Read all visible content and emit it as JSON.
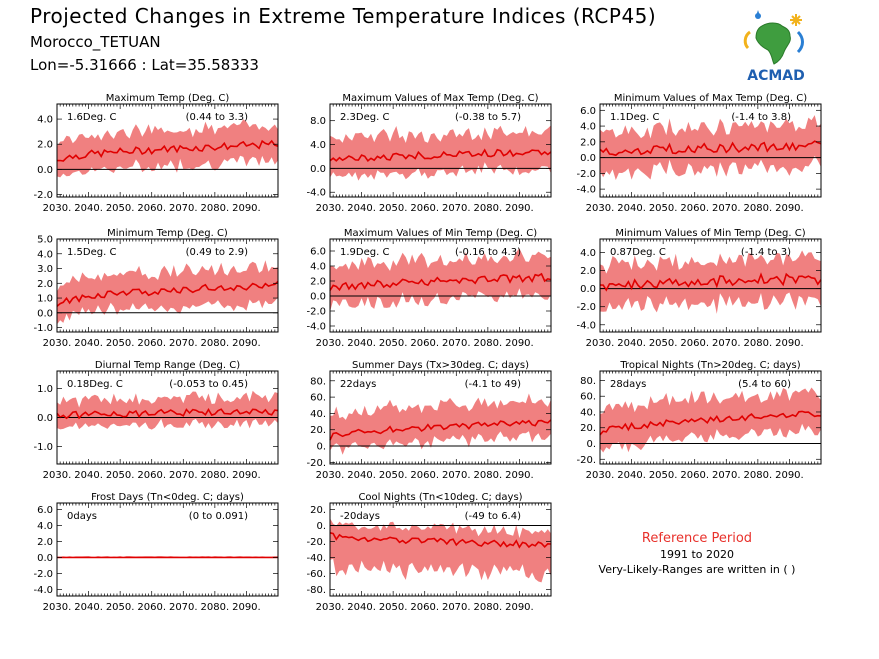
{
  "header": {
    "title": "Projected Changes in Extreme Temperature Indices (RCP45)",
    "station": "Morocco_TETUAN",
    "coords": "Lon=-5.31666 : Lat=35.58333"
  },
  "logo": {
    "text": "ACMAD",
    "icon": "africa-map-logo-icon"
  },
  "reference": {
    "title": "Reference Period",
    "years": "1991 to 2020",
    "note": "Very-Likely-Ranges are written in ( )"
  },
  "colors": {
    "band": "#f08080",
    "line": "#e00000",
    "zero": "#000000"
  },
  "chart_data": [
    {
      "type": "area",
      "title": "Maximum Temp (Deg. C)",
      "mean_label": "1.6Deg. C",
      "range_label": "(0.44 to 3.3)",
      "yticks": [
        -2,
        0,
        2,
        4
      ],
      "ytick_labels": [
        "-2.0",
        "0.0",
        "2.0",
        "4.0"
      ],
      "ylim": [
        -2.2,
        5.2
      ],
      "xticks": [
        "2030.",
        "2040.",
        "2050.",
        "2060.",
        "2070.",
        "2080.",
        "2090."
      ],
      "series": [
        {
          "start": 0.7,
          "end": 2.0,
          "low_offset": -1.3,
          "high_offset": 1.5,
          "noise": 0.3
        }
      ]
    },
    {
      "type": "area",
      "title": "Maximum Values of Max Temp (Deg. C)",
      "mean_label": "2.3Deg. C",
      "range_label": "(-0.38 to 5.7)",
      "yticks": [
        -4,
        0,
        4,
        8
      ],
      "ytick_labels": [
        "-4.0",
        "0.0",
        "4.0",
        "8.0"
      ],
      "ylim": [
        -4.8,
        10.8
      ],
      "xticks": [
        "2030.",
        "2040.",
        "2050.",
        "2060.",
        "2070.",
        "2080.",
        "2090."
      ],
      "series": [
        {
          "start": 1.0,
          "end": 2.8,
          "low_offset": -2.8,
          "high_offset": 3.6,
          "noise": 0.6
        }
      ]
    },
    {
      "type": "area",
      "title": "Minimum Values of Max Temp (Deg. C)",
      "mean_label": "1.1Deg. C",
      "range_label": "(-1.4 to 3.8)",
      "yticks": [
        -4,
        -2,
        0,
        2,
        4,
        6
      ],
      "ytick_labels": [
        "-4.0",
        "-2.0",
        "0.0",
        "2.0",
        "4.0",
        "6.0"
      ],
      "ylim": [
        -5.0,
        6.8
      ],
      "xticks": [
        "2030.",
        "2040.",
        "2050.",
        "2060.",
        "2070.",
        "2080.",
        "2090."
      ],
      "series": [
        {
          "start": 0.5,
          "end": 1.5,
          "low_offset": -2.6,
          "high_offset": 2.6,
          "noise": 0.6
        }
      ]
    },
    {
      "type": "area",
      "title": "Minimum Temp (Deg. C)",
      "mean_label": "1.5Deg. C",
      "range_label": "(0.49 to 2.9)",
      "yticks": [
        -1,
        0,
        1,
        2,
        3,
        4,
        5
      ],
      "ytick_labels": [
        "-1.0",
        "0.0",
        "1.0",
        "2.0",
        "3.0",
        "4.0",
        "5.0"
      ],
      "ylim": [
        -1.3,
        5.0
      ],
      "xticks": [
        "2030.",
        "2040.",
        "2050.",
        "2060.",
        "2070.",
        "2080.",
        "2090."
      ],
      "series": [
        {
          "start": 0.6,
          "end": 1.9,
          "low_offset": -1.1,
          "high_offset": 1.3,
          "noise": 0.25
        }
      ]
    },
    {
      "type": "area",
      "title": "Maximum Values of Min Temp (Deg. C)",
      "mean_label": "1.9Deg. C",
      "range_label": "(-0.16 to 4.3)",
      "yticks": [
        -4,
        -2,
        0,
        2,
        4,
        6
      ],
      "ytick_labels": [
        "-4.0",
        "-2.0",
        "0.0",
        "2.0",
        "4.0",
        "6.0"
      ],
      "ylim": [
        -4.8,
        7.6
      ],
      "xticks": [
        "2030.",
        "2040.",
        "2050.",
        "2060.",
        "2070.",
        "2080.",
        "2090."
      ],
      "series": [
        {
          "start": 0.8,
          "end": 2.5,
          "low_offset": -2.4,
          "high_offset": 2.8,
          "noise": 0.5
        }
      ]
    },
    {
      "type": "area",
      "title": "Minimum Values of Min Temp (Deg. C)",
      "mean_label": "0.87Deg. C",
      "range_label": "(-1.4 to 3)",
      "yticks": [
        -4,
        -2,
        0,
        2,
        4
      ],
      "ytick_labels": [
        "-4.0",
        "-2.0",
        "0.0",
        "2.0",
        "4.0"
      ],
      "ylim": [
        -4.8,
        5.5
      ],
      "xticks": [
        "2030.",
        "2040.",
        "2050.",
        "2060.",
        "2070.",
        "2080.",
        "2090."
      ],
      "series": [
        {
          "start": 0.2,
          "end": 1.1,
          "low_offset": -2.4,
          "high_offset": 2.4,
          "noise": 0.6
        }
      ]
    },
    {
      "type": "area",
      "title": "Diurnal Temp Range (Deg. C)",
      "mean_label": "0.18Deg. C",
      "range_label": "(-0.053 to 0.45)",
      "yticks": [
        -1,
        0,
        1
      ],
      "ytick_labels": [
        "-1.0",
        "0.0",
        "1.0"
      ],
      "ylim": [
        -1.6,
        1.6
      ],
      "xticks": [
        "2030.",
        "2040.",
        "2050.",
        "2060.",
        "2070.",
        "2080.",
        "2090."
      ],
      "series": [
        {
          "start": 0.05,
          "end": 0.2,
          "low_offset": -0.4,
          "high_offset": 0.5,
          "noise": 0.12
        }
      ]
    },
    {
      "type": "area",
      "title": "Summer Days (Tx>30deg. C; days)",
      "mean_label": "22days",
      "range_label": "(-4.1 to 49)",
      "yticks": [
        -20,
        0,
        20,
        40,
        60,
        80
      ],
      "ytick_labels": [
        "-20.",
        "0.",
        "20.",
        "40.",
        "60.",
        "80."
      ],
      "ylim": [
        -22,
        92
      ],
      "xticks": [
        "2030.",
        "2040.",
        "2050.",
        "2060.",
        "2070.",
        "2080.",
        "2090."
      ],
      "series": [
        {
          "start": 10,
          "end": 29,
          "low_offset": -18,
          "high_offset": 26,
          "noise": 4
        }
      ]
    },
    {
      "type": "area",
      "title": "Tropical Nights (Tn>20deg. C; days)",
      "mean_label": "28days",
      "range_label": "(5.4 to 60)",
      "yticks": [
        -20,
        0,
        20,
        40,
        60,
        80
      ],
      "ytick_labels": [
        "-20.",
        "0.",
        "20.",
        "40.",
        "60.",
        "80."
      ],
      "ylim": [
        -26,
        92
      ],
      "xticks": [
        "2030.",
        "2040.",
        "2050.",
        "2060.",
        "2070.",
        "2080.",
        "2090."
      ],
      "series": [
        {
          "start": 12,
          "end": 38,
          "low_offset": -22,
          "high_offset": 28,
          "noise": 4
        }
      ]
    },
    {
      "type": "area",
      "title": "Frost Days (Tn<0deg. C; days)",
      "mean_label": "0days",
      "range_label": "(0 to 0.091)",
      "yticks": [
        -4,
        -2,
        0,
        2,
        4,
        6
      ],
      "ytick_labels": [
        "-4.0",
        "-2.0",
        "0.0",
        "2.0",
        "4.0",
        "6.0"
      ],
      "ylim": [
        -4.8,
        6.8
      ],
      "xticks": [
        "2030.",
        "2040.",
        "2050.",
        "2060.",
        "2070.",
        "2080.",
        "2090."
      ],
      "series": [
        {
          "start": 0,
          "end": 0,
          "low_offset": 0,
          "high_offset": 0.15,
          "noise": 0
        }
      ]
    },
    {
      "type": "area",
      "title": "Cool Nights (Tn<10deg. C; days)",
      "mean_label": "-20days",
      "range_label": "(-49 to 6.4)",
      "yticks": [
        -80,
        -60,
        -40,
        -20,
        0,
        20
      ],
      "ytick_labels": [
        "-80.",
        "-60.",
        "-40.",
        "-20.",
        "0.",
        "20."
      ],
      "ylim": [
        -88,
        28
      ],
      "xticks": [
        "2030.",
        "2040.",
        "2050.",
        "2060.",
        "2070.",
        "2080.",
        "2090."
      ],
      "series": [
        {
          "start": -12,
          "end": -24,
          "low_offset": -38,
          "high_offset": 16,
          "noise": 4
        }
      ]
    }
  ]
}
